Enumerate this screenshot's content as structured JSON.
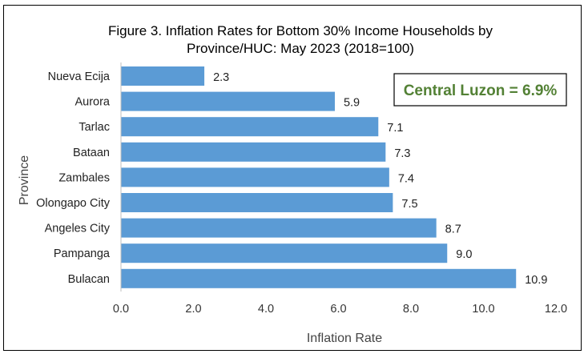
{
  "chart_data": {
    "type": "bar",
    "orientation": "horizontal",
    "title_lines": [
      "Figure 3. Inflation Rates for Bottom 30% Income Households by",
      "Province/HUC: May 2023 (2018=100)"
    ],
    "categories": [
      "Nueva Ecija",
      "Aurora",
      "Tarlac",
      "Bataan",
      "Zambales",
      "Olongapo City",
      "Angeles City",
      "Pampanga",
      "Bulacan"
    ],
    "values": [
      2.3,
      5.9,
      7.1,
      7.3,
      7.4,
      7.5,
      8.7,
      9.0,
      10.9
    ],
    "value_labels": [
      "2.3",
      "5.9",
      "7.1",
      "7.3",
      "7.4",
      "7.5",
      "8.7",
      "9.0",
      "10.9"
    ],
    "xlabel": "Inflation Rate",
    "ylabel": "Province",
    "xlim": [
      0,
      12
    ],
    "xticks": [
      "0.0",
      "2.0",
      "4.0",
      "6.0",
      "8.0",
      "10.0",
      "12.0"
    ],
    "grid": false,
    "legend": false,
    "bar_color": "#5b9bd5",
    "annotation": {
      "text": "Central Luzon = 6.9%",
      "color": "#538135",
      "border_color": "#000000",
      "placement": "top-right"
    }
  }
}
